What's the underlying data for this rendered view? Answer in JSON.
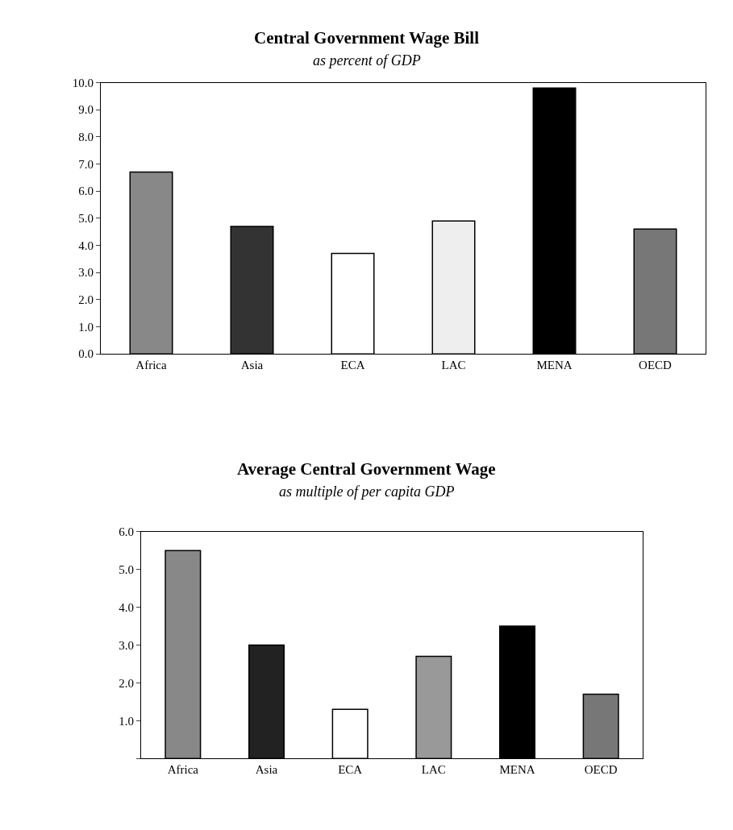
{
  "chart_data": [
    {
      "type": "bar",
      "title": "Central Government Wage Bill",
      "subtitle": "as percent of GDP",
      "categories": [
        "Africa",
        "Asia",
        "ECA",
        "LAC",
        "MENA",
        "OECD"
      ],
      "values": [
        6.7,
        4.7,
        3.7,
        4.9,
        9.8,
        4.6
      ],
      "colors": [
        "#888888",
        "#333333",
        "#ffffff",
        "#eeeeee",
        "#000000",
        "#777777"
      ],
      "ylim": [
        0,
        10
      ],
      "yticks": [
        {
          "value": 0,
          "label": "0.0"
        },
        {
          "value": 1,
          "label": "1.0"
        },
        {
          "value": 2,
          "label": "2.0"
        },
        {
          "value": 3,
          "label": "3.0"
        },
        {
          "value": 4,
          "label": "4.0"
        },
        {
          "value": 5,
          "label": "5.0"
        },
        {
          "value": 6,
          "label": "6.0"
        },
        {
          "value": 7,
          "label": "7.0"
        },
        {
          "value": 8,
          "label": "8.0"
        },
        {
          "value": 9,
          "label": "9.0"
        },
        {
          "value": 10,
          "label": "10.0"
        }
      ]
    },
    {
      "type": "bar",
      "title": "Average Central Government Wage",
      "subtitle": "as multiple of per capita GDP",
      "categories": [
        "Africa",
        "Asia",
        "ECA",
        "LAC",
        "MENA",
        "OECD"
      ],
      "values": [
        5.5,
        3.0,
        1.3,
        2.7,
        3.5,
        1.7
      ],
      "colors": [
        "#888888",
        "#222222",
        "#ffffff",
        "#999999",
        "#000000",
        "#777777"
      ],
      "ylim": [
        0,
        6
      ],
      "yticks": [
        {
          "value": 0,
          "label": null
        },
        {
          "value": 1,
          "label": "1.0"
        },
        {
          "value": 2,
          "label": "2.0"
        },
        {
          "value": 3,
          "label": "3.0"
        },
        {
          "value": 4,
          "label": "4.0"
        },
        {
          "value": 5,
          "label": "5.0"
        },
        {
          "value": 6,
          "label": "6.0"
        }
      ]
    }
  ]
}
